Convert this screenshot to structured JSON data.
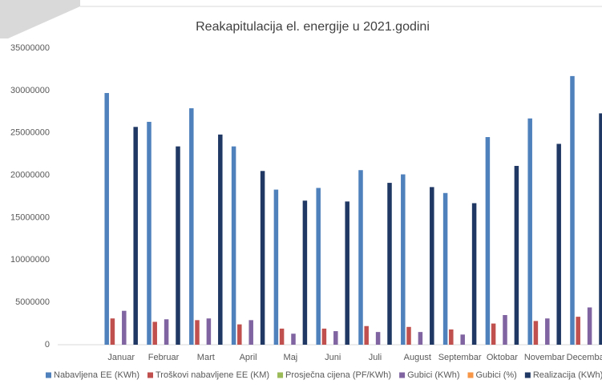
{
  "chart_data": {
    "type": "bar",
    "title": "Reakapitulacija el. energije u 2021.godini",
    "categories": [
      null,
      "Januar",
      "Februar",
      "Mart",
      "April",
      "Maj",
      "Juni",
      "Juli",
      "August",
      "Septembar",
      "Oktobar",
      "Novembar",
      "Decembar"
    ],
    "series": [
      {
        "name": "Nabavljena EE (KWh)",
        "color": "#4f81bd",
        "values": [
          null,
          29700000,
          26300000,
          27900000,
          23400000,
          18300000,
          18500000,
          20600000,
          20100000,
          17900000,
          24500000,
          26700000,
          31700000
        ]
      },
      {
        "name": "Troškovi nabavljene EE (KM)",
        "color": "#c0504d",
        "values": [
          null,
          3100000,
          2700000,
          2900000,
          2400000,
          1900000,
          1900000,
          2200000,
          2100000,
          1800000,
          2500000,
          2800000,
          3300000
        ]
      },
      {
        "name": "Prosječna cijena (PF/KWh)",
        "color": "#9bbb59",
        "values": [
          null,
          0.1,
          0.1,
          0.1,
          0.1,
          0.1,
          0.1,
          0.1,
          0.1,
          0.1,
          0.1,
          0.1,
          0.1
        ]
      },
      {
        "name": "Gubici (KWh)",
        "color": "#8064a2",
        "values": [
          null,
          4000000,
          3000000,
          3100000,
          2900000,
          1300000,
          1600000,
          1500000,
          1500000,
          1200000,
          3500000,
          3100000,
          4400000
        ]
      },
      {
        "name": "Gubici (%)",
        "color": "#f79646",
        "values": [
          null,
          13,
          11,
          11,
          12,
          7,
          9,
          7,
          7,
          7,
          14,
          12,
          14
        ]
      },
      {
        "name": "Realizacija (KWh)",
        "color": "#1f3864",
        "values": [
          null,
          25700000,
          23400000,
          24800000,
          20500000,
          17000000,
          16900000,
          19100000,
          18600000,
          16700000,
          21100000,
          23700000,
          27300000
        ]
      }
    ],
    "ylim": [
      0,
      35000000
    ],
    "yticks": [
      0,
      5000000,
      10000000,
      15000000,
      20000000,
      25000000,
      30000000,
      35000000
    ],
    "grid": false,
    "legend": "bottom"
  }
}
